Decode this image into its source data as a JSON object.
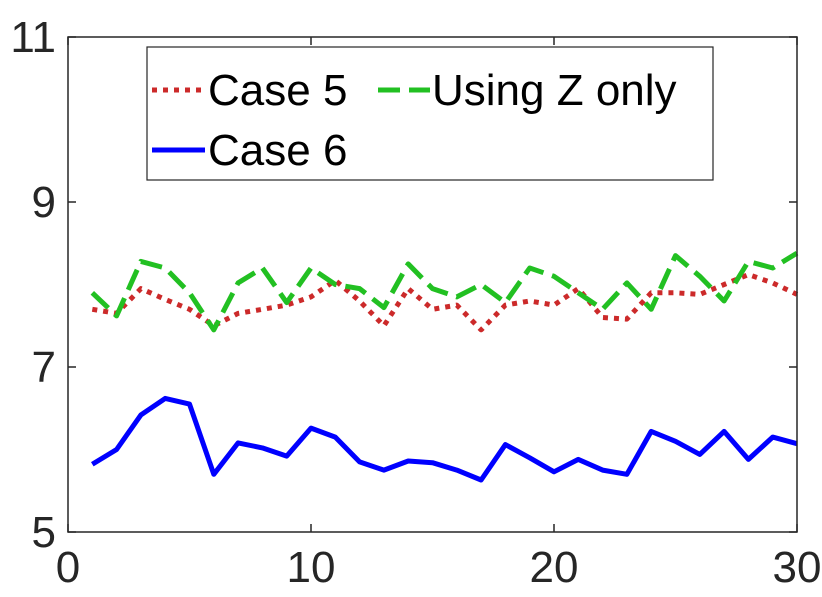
{
  "chart_data": {
    "type": "line",
    "title": "",
    "xlabel": "",
    "ylabel": "",
    "xlim": [
      0,
      30
    ],
    "ylim": [
      5,
      11
    ],
    "xticks": [
      0,
      10,
      20,
      30
    ],
    "yticks": [
      5,
      7,
      9,
      11
    ],
    "x_tick_labels": [
      "0",
      "10",
      "20",
      "30"
    ],
    "y_tick_labels": [
      "5",
      "7",
      "9",
      "11"
    ],
    "grid": false,
    "legend_position": "top",
    "x": [
      1,
      2,
      3,
      4,
      5,
      6,
      7,
      8,
      9,
      10,
      11,
      12,
      13,
      14,
      15,
      16,
      17,
      18,
      19,
      20,
      21,
      22,
      23,
      24,
      25,
      26,
      27,
      28,
      29,
      30
    ],
    "series": [
      {
        "name": "Case 5",
        "color": "#cc2a2a",
        "style": "dotted",
        "values": [
          7.7,
          7.65,
          7.95,
          7.82,
          7.7,
          7.5,
          7.65,
          7.7,
          7.75,
          7.85,
          8.05,
          7.8,
          7.5,
          7.95,
          7.7,
          7.75,
          7.45,
          7.75,
          7.8,
          7.75,
          7.95,
          7.6,
          7.58,
          7.9,
          7.9,
          7.88,
          8.0,
          8.12,
          8.02,
          7.88
        ]
      },
      {
        "name": "Using Z only",
        "color": "#22c022",
        "style": "dashed",
        "values": [
          7.9,
          7.62,
          8.28,
          8.2,
          7.9,
          7.45,
          8.02,
          8.2,
          7.78,
          8.2,
          8.0,
          7.95,
          7.72,
          8.25,
          7.95,
          7.85,
          8.0,
          7.78,
          8.2,
          8.1,
          7.9,
          7.7,
          8.02,
          7.7,
          8.35,
          8.1,
          7.8,
          8.28,
          8.2,
          8.38
        ]
      },
      {
        "name": "Case 6",
        "color": "#0000ff",
        "style": "solid",
        "values": [
          5.82,
          6.0,
          6.42,
          6.62,
          6.55,
          5.7,
          6.08,
          6.02,
          5.92,
          6.26,
          6.15,
          5.85,
          5.75,
          5.86,
          5.84,
          5.75,
          5.63,
          6.06,
          5.9,
          5.73,
          5.88,
          5.75,
          5.7,
          6.22,
          6.1,
          5.94,
          6.22,
          5.88,
          6.15,
          6.07
        ]
      }
    ]
  }
}
